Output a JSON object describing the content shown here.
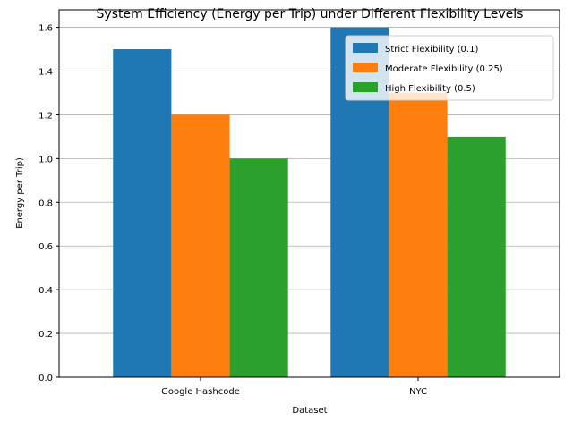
{
  "chart_data": {
    "type": "bar",
    "title": "System Efficiency (Energy per Trip) under Different Flexibility Levels",
    "xlabel": "Dataset",
    "ylabel": "Energy per Trip)",
    "categories": [
      "Google Hashcode",
      "NYC"
    ],
    "series": [
      {
        "name": "Strict Flexibility (0.1)",
        "color": "#1f77b4",
        "values": [
          1.5,
          1.6
        ]
      },
      {
        "name": "Moderate Flexibility (0.25)",
        "color": "#ff7f0e",
        "values": [
          1.2,
          1.3
        ]
      },
      {
        "name": "High Flexibility (0.5)",
        "color": "#2ca02c",
        "values": [
          1.0,
          1.1
        ]
      }
    ],
    "ylim": [
      0,
      1.68
    ],
    "yticks": [
      "0.0",
      "0.2",
      "0.4",
      "0.6",
      "0.8",
      "1.0",
      "1.2",
      "1.4",
      "1.6"
    ],
    "grid": "y-axis on",
    "legend_position": "top-right"
  }
}
